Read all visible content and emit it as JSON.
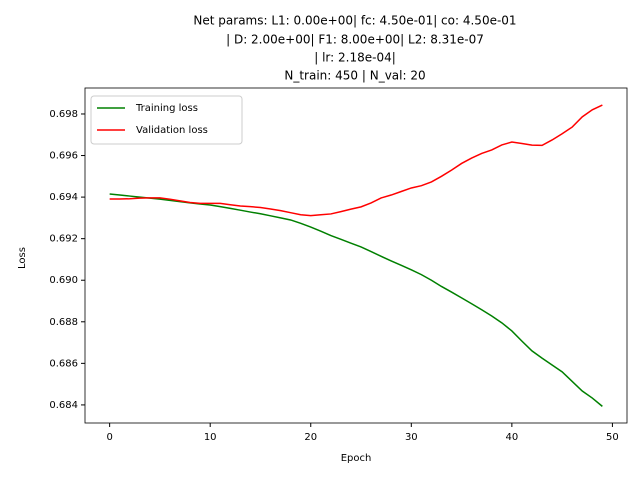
{
  "chart_data": {
    "type": "line",
    "title_lines": [
      "Net params: L1: 0.00e+00| fc: 4.50e-01| co: 4.50e-01",
      "| D: 2.00e+00| F1: 8.00e+00| L2: 8.31e-07",
      "| lr: 2.18e-04|",
      "N_train: 450 | N_val: 20"
    ],
    "x_label": "Epoch",
    "y_label": "Loss",
    "x": [
      0,
      1,
      2,
      3,
      4,
      5,
      6,
      7,
      8,
      9,
      10,
      11,
      12,
      13,
      14,
      15,
      16,
      17,
      18,
      19,
      20,
      21,
      22,
      23,
      24,
      25,
      26,
      27,
      28,
      29,
      30,
      31,
      32,
      33,
      34,
      35,
      36,
      37,
      38,
      39,
      40,
      41,
      42,
      43,
      44,
      45,
      46,
      47,
      48,
      49
    ],
    "series": [
      {
        "name": "Training loss",
        "color": "#008000",
        "values": [
          0.69415,
          0.6941,
          0.69405,
          0.694,
          0.69395,
          0.6939,
          0.69384,
          0.69378,
          0.69372,
          0.69367,
          0.69362,
          0.69354,
          0.69346,
          0.69337,
          0.69328,
          0.6932,
          0.6931,
          0.693,
          0.6929,
          0.69274,
          0.69256,
          0.69236,
          0.69215,
          0.69197,
          0.69178,
          0.6916,
          0.69138,
          0.69115,
          0.69093,
          0.69072,
          0.6905,
          0.69027,
          0.69,
          0.6897,
          0.68943,
          0.68915,
          0.68887,
          0.68858,
          0.68828,
          0.68795,
          0.68756,
          0.68707,
          0.6866,
          0.68625,
          0.68592,
          0.68559,
          0.68513,
          0.68467,
          0.68433,
          0.68393
        ]
      },
      {
        "name": "Validation loss",
        "color": "#ff0000",
        "values": [
          0.69391,
          0.69391,
          0.69392,
          0.69395,
          0.69396,
          0.69396,
          0.6939,
          0.69382,
          0.69374,
          0.6937,
          0.6937,
          0.6937,
          0.69363,
          0.69357,
          0.69354,
          0.6935,
          0.69343,
          0.69335,
          0.69325,
          0.69315,
          0.69311,
          0.69315,
          0.69319,
          0.6933,
          0.69342,
          0.69353,
          0.69372,
          0.69396,
          0.6941,
          0.69427,
          0.69444,
          0.69455,
          0.69473,
          0.695,
          0.6953,
          0.69562,
          0.69588,
          0.6961,
          0.69627,
          0.69651,
          0.69665,
          0.69658,
          0.6965,
          0.69649,
          0.69675,
          0.69705,
          0.69737,
          0.69786,
          0.6982,
          0.69843
        ]
      }
    ],
    "xlim": [
      -2.45,
      51.45
    ],
    "xticks": [
      0,
      10,
      20,
      30,
      40,
      50
    ],
    "ylim": [
      0.68313,
      0.69925
    ],
    "yticks": [
      0.684,
      0.686,
      0.688,
      {
        "value": 0.69,
        "label": "0.690"
      },
      0.692,
      0.694,
      0.696,
      0.698
    ],
    "legend": "upper left"
  }
}
